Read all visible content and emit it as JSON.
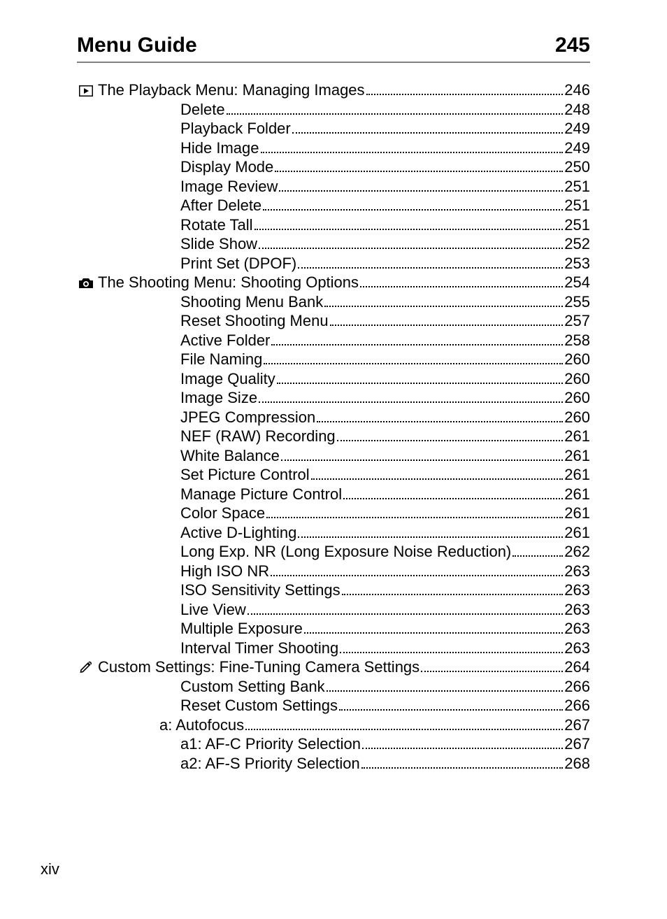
{
  "header": {
    "title": "Menu Guide",
    "page": "245"
  },
  "footer": {
    "roman": "xiv"
  },
  "colors": {
    "text": "#000000",
    "rule": "#808080",
    "bg": "#ffffff"
  },
  "typography": {
    "header_fontsize": 30,
    "body_fontsize": 22,
    "font_family": "Arial"
  },
  "toc": {
    "sections": [
      {
        "icon": "playback-icon",
        "title": "The Playback Menu: Managing Images",
        "page": "246",
        "items": [
          {
            "label": "Delete",
            "page": "248"
          },
          {
            "label": "Playback Folder",
            "page": "249"
          },
          {
            "label": "Hide Image",
            "page": "249"
          },
          {
            "label": "Display Mode",
            "page": "250"
          },
          {
            "label": "Image Review",
            "page": "251"
          },
          {
            "label": "After Delete",
            "page": "251"
          },
          {
            "label": "Rotate Tall",
            "page": "251"
          },
          {
            "label": "Slide Show",
            "page": "252"
          },
          {
            "label": "Print Set (DPOF)",
            "page": "253"
          }
        ]
      },
      {
        "icon": "camera-icon",
        "title": "The Shooting Menu: Shooting Options",
        "page": "254",
        "items": [
          {
            "label": "Shooting Menu Bank",
            "page": "255"
          },
          {
            "label": "Reset Shooting Menu",
            "page": "257"
          },
          {
            "label": "Active Folder",
            "page": "258"
          },
          {
            "label": "File Naming",
            "page": "260"
          },
          {
            "label": "Image Quality",
            "page": "260"
          },
          {
            "label": "Image Size",
            "page": "260"
          },
          {
            "label": "JPEG Compression",
            "page": "260"
          },
          {
            "label": "NEF (RAW) Recording",
            "page": "261"
          },
          {
            "label": "White Balance",
            "page": "261"
          },
          {
            "label": "Set Picture Control",
            "page": "261"
          },
          {
            "label": "Manage Picture Control",
            "page": "261"
          },
          {
            "label": "Color Space",
            "page": "261"
          },
          {
            "label": "Active D-Lighting",
            "page": "261"
          },
          {
            "label": "Long Exp. NR (Long Exposure Noise Reduction)",
            "page": "262"
          },
          {
            "label": "High ISO NR",
            "page": "263"
          },
          {
            "label": "ISO Sensitivity Settings",
            "page": "263"
          },
          {
            "label": "Live View",
            "page": "263"
          },
          {
            "label": "Multiple Exposure",
            "page": "263"
          },
          {
            "label": "Interval Timer Shooting",
            "page": "263"
          }
        ]
      },
      {
        "icon": "pencil-icon",
        "title": "Custom Settings: Fine-Tuning Camera Settings",
        "page": "264",
        "items": [
          {
            "label": "Custom Setting Bank",
            "page": "266"
          },
          {
            "label": "Reset Custom Settings",
            "page": "266"
          }
        ],
        "subgroups": [
          {
            "label": "a: Autofocus",
            "page": "267",
            "items": [
              {
                "label": "a1: AF-C Priority Selection",
                "page": "267"
              },
              {
                "label": "a2: AF-S Priority Selection",
                "page": "268"
              }
            ]
          }
        ]
      }
    ]
  }
}
